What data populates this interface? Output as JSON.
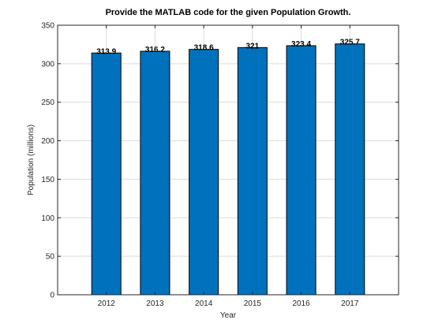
{
  "chart_data": {
    "type": "bar",
    "title": "Provide the MATLAB code for the given Population Growth.",
    "xlabel": "Year",
    "ylabel": "Population (millions)",
    "categories": [
      "2012",
      "2013",
      "2014",
      "2015",
      "2016",
      "2017"
    ],
    "values": [
      313.9,
      316.2,
      318.6,
      321,
      323.4,
      325.7
    ],
    "data_labels": [
      "313.9",
      "316.2",
      "318.6",
      "321",
      "323.4",
      "325.7"
    ],
    "ylim": [
      0,
      350
    ],
    "yticks": [
      0,
      50,
      100,
      150,
      200,
      250,
      300,
      350
    ],
    "xlim": [
      2011,
      2018
    ],
    "grid": true,
    "bar_color": "#0072bd"
  }
}
